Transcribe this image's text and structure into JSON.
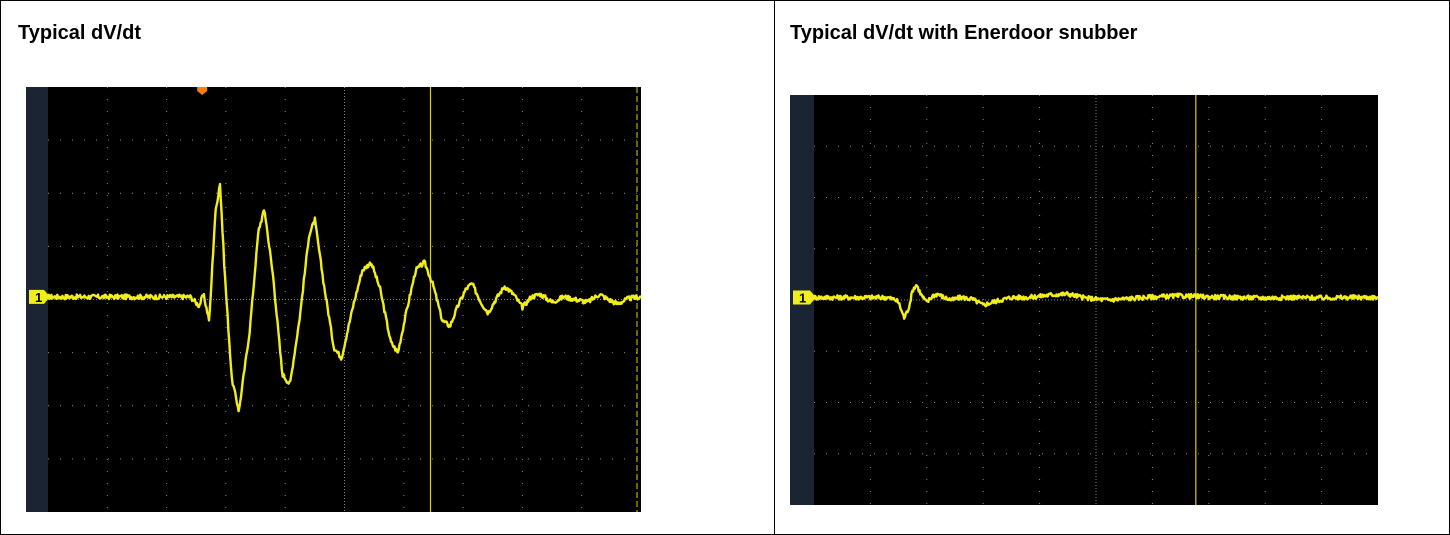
{
  "panels": [
    {
      "title": "Typical dV/dt"
    },
    {
      "title": "Typical dV/dt with Enerdoor snubber"
    }
  ],
  "colors": {
    "trace": "#f2ee1a",
    "screen": "#000000",
    "grid": "#8a8a8a",
    "bezel": "#1a2433",
    "marker": "#d8d000",
    "trigger": "#ff7f00"
  },
  "chart_data": [
    {
      "type": "line",
      "title": "",
      "xlabel": "",
      "ylabel": "",
      "grid": true,
      "xlim": [
        0,
        10
      ],
      "ylim": [
        -4,
        4
      ],
      "channel_marker": "1",
      "series": [
        {
          "values": [
            [
              0.0,
              0.05
            ],
            [
              2.4,
              0.05
            ],
            [
              2.55,
              -0.12
            ],
            [
              2.62,
              0.1
            ],
            [
              2.72,
              -0.4
            ],
            [
              2.82,
              1.6
            ],
            [
              2.9,
              2.2
            ],
            [
              2.98,
              0.5
            ],
            [
              3.1,
              -1.5
            ],
            [
              3.22,
              -2.1
            ],
            [
              3.4,
              -0.6
            ],
            [
              3.55,
              1.3
            ],
            [
              3.65,
              1.7
            ],
            [
              3.8,
              0.4
            ],
            [
              3.95,
              -1.4
            ],
            [
              4.08,
              -1.6
            ],
            [
              4.25,
              -0.3
            ],
            [
              4.4,
              1.2
            ],
            [
              4.5,
              1.5
            ],
            [
              4.65,
              0.3
            ],
            [
              4.82,
              -0.9
            ],
            [
              4.95,
              -1.1
            ],
            [
              5.15,
              -0.1
            ],
            [
              5.3,
              0.55
            ],
            [
              5.45,
              0.7
            ],
            [
              5.6,
              0.2
            ],
            [
              5.78,
              -0.8
            ],
            [
              5.9,
              -1.0
            ],
            [
              6.05,
              -0.2
            ],
            [
              6.2,
              0.55
            ],
            [
              6.35,
              0.7
            ],
            [
              6.5,
              0.25
            ],
            [
              6.65,
              -0.4
            ],
            [
              6.78,
              -0.5
            ],
            [
              6.92,
              -0.1
            ],
            [
              7.05,
              0.2
            ],
            [
              7.15,
              0.3
            ],
            [
              7.3,
              -0.05
            ],
            [
              7.42,
              -0.25
            ],
            [
              7.55,
              0.0
            ],
            [
              7.7,
              0.25
            ],
            [
              7.85,
              0.1
            ],
            [
              8.0,
              -0.15
            ],
            [
              8.15,
              0.05
            ],
            [
              8.3,
              0.1
            ],
            [
              8.5,
              -0.05
            ],
            [
              8.7,
              0.05
            ],
            [
              8.9,
              0.0
            ],
            [
              9.1,
              -0.05
            ],
            [
              9.3,
              0.1
            ],
            [
              9.45,
              0.0
            ],
            [
              9.6,
              -0.08
            ],
            [
              9.8,
              0.02
            ],
            [
              10.0,
              0.05
            ]
          ]
        }
      ]
    },
    {
      "type": "line",
      "title": "",
      "xlabel": "",
      "ylabel": "",
      "grid": true,
      "xlim": [
        0,
        10
      ],
      "ylim": [
        -4,
        4
      ],
      "channel_marker": "1",
      "series": [
        {
          "values": [
            [
              0.0,
              0.05
            ],
            [
              1.3,
              0.05
            ],
            [
              1.45,
              0.0
            ],
            [
              1.5,
              -0.05
            ],
            [
              1.6,
              -0.35
            ],
            [
              1.68,
              -0.15
            ],
            [
              1.75,
              0.2
            ],
            [
              1.82,
              0.3
            ],
            [
              1.9,
              0.1
            ],
            [
              2.0,
              -0.05
            ],
            [
              2.1,
              0.08
            ],
            [
              2.2,
              0.12
            ],
            [
              2.3,
              0.05
            ],
            [
              2.45,
              0.0
            ],
            [
              2.6,
              0.05
            ],
            [
              2.8,
              0.02
            ],
            [
              3.0,
              -0.1
            ],
            [
              3.2,
              -0.03
            ],
            [
              3.5,
              0.05
            ],
            [
              3.8,
              0.05
            ],
            [
              4.2,
              0.1
            ],
            [
              4.5,
              0.12
            ],
            [
              4.8,
              0.04
            ],
            [
              5.2,
              0.0
            ],
            [
              5.6,
              0.03
            ],
            [
              6.0,
              0.06
            ],
            [
              6.5,
              0.08
            ],
            [
              7.0,
              0.06
            ],
            [
              7.5,
              0.05
            ],
            [
              8.0,
              0.04
            ],
            [
              8.5,
              0.05
            ],
            [
              9.0,
              0.04
            ],
            [
              9.5,
              0.05
            ],
            [
              10.0,
              0.05
            ]
          ]
        }
      ]
    }
  ]
}
